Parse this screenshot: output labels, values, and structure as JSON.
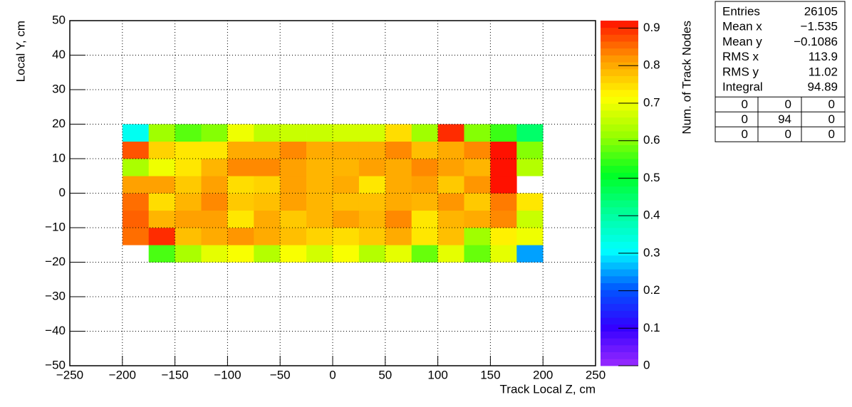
{
  "chart_data": {
    "type": "heatmap",
    "xlabel": "Track Local Z, cm",
    "ylabel": "Local Y, cm",
    "zlabel": "Num. of Track Nodes",
    "xlim": [
      -250,
      250
    ],
    "ylim": [
      -50,
      50
    ],
    "zlim": [
      0,
      0.92
    ],
    "xticks": [
      {
        "value": -250,
        "label": "−250"
      },
      {
        "value": -200,
        "label": "−200"
      },
      {
        "value": -150,
        "label": "−150"
      },
      {
        "value": -100,
        "label": "−100"
      },
      {
        "value": -50,
        "label": "−50"
      },
      0,
      50,
      100,
      150,
      200,
      250
    ],
    "yticks": [
      {
        "value": -50,
        "label": "−50"
      },
      {
        "value": -40,
        "label": "−40"
      },
      {
        "value": -30,
        "label": "−30"
      },
      {
        "value": -20,
        "label": "−20"
      },
      {
        "value": -10,
        "label": "−10"
      },
      0,
      10,
      20,
      30,
      40,
      50
    ],
    "zticks": [
      0,
      0.1,
      0.2,
      0.3,
      0.4,
      0.5,
      0.6,
      0.7,
      0.8,
      0.9
    ],
    "grid": true,
    "colorscale": [
      "#9a2bff",
      "#3300ff",
      "#0055ff",
      "#00ffff",
      "#00ff99",
      "#00ff22",
      "#99ff00",
      "#ffff00",
      "#ff9900",
      "#ff1100"
    ],
    "xbins": [
      -200,
      -175,
      -150,
      -125,
      -100,
      -75,
      -50,
      -25,
      0,
      25,
      50,
      75,
      100,
      125,
      150,
      175,
      200
    ],
    "ybins": [
      -20,
      -15,
      -10,
      -5,
      0,
      5,
      10,
      15,
      20
    ],
    "z": [
      [
        null,
        0.56,
        0.63,
        0.69,
        0.71,
        0.64,
        0.71,
        0.67,
        0.71,
        0.64,
        0.69,
        0.58,
        0.69,
        0.58,
        0.69,
        0.25
      ],
      [
        0.85,
        0.9,
        0.78,
        0.8,
        0.82,
        0.8,
        0.78,
        0.76,
        0.75,
        0.77,
        0.8,
        0.74,
        0.78,
        0.62,
        0.73,
        0.7
      ],
      [
        0.86,
        0.79,
        0.81,
        0.81,
        0.74,
        0.8,
        0.77,
        0.79,
        0.81,
        0.79,
        0.83,
        0.74,
        0.79,
        0.8,
        0.83,
        0.66
      ],
      [
        0.85,
        0.75,
        0.79,
        0.83,
        0.77,
        0.78,
        0.81,
        0.79,
        0.78,
        0.78,
        0.8,
        0.79,
        0.82,
        0.77,
        0.84,
        0.74
      ],
      [
        0.81,
        0.81,
        0.77,
        0.81,
        0.75,
        0.76,
        0.81,
        0.79,
        0.8,
        0.74,
        0.8,
        0.81,
        0.77,
        0.82,
        0.92,
        null
      ],
      [
        0.63,
        0.7,
        0.74,
        0.79,
        0.83,
        0.83,
        0.81,
        0.79,
        0.79,
        0.81,
        0.8,
        0.83,
        0.81,
        0.79,
        0.92,
        0.64
      ],
      [
        0.87,
        0.76,
        0.74,
        0.74,
        0.8,
        0.8,
        0.83,
        0.8,
        0.8,
        0.8,
        0.83,
        0.78,
        0.8,
        0.83,
        0.92,
        0.6
      ],
      [
        0.32,
        0.62,
        0.57,
        0.6,
        0.7,
        0.65,
        0.66,
        0.66,
        0.67,
        0.67,
        0.75,
        0.62,
        0.9,
        0.6,
        0.55,
        0.45
      ]
    ],
    "stats": [
      [
        "Entries",
        26105
      ],
      [
        "Mean x",
        "−1.535"
      ],
      [
        "Mean y",
        "−0.1086"
      ],
      [
        "RMS x",
        113.9
      ],
      [
        "RMS y",
        11.02
      ],
      [
        "Integral",
        94.89
      ]
    ],
    "overflow": [
      [
        0,
        0,
        0
      ],
      [
        0,
        94,
        0
      ],
      [
        0,
        0,
        0
      ]
    ]
  }
}
